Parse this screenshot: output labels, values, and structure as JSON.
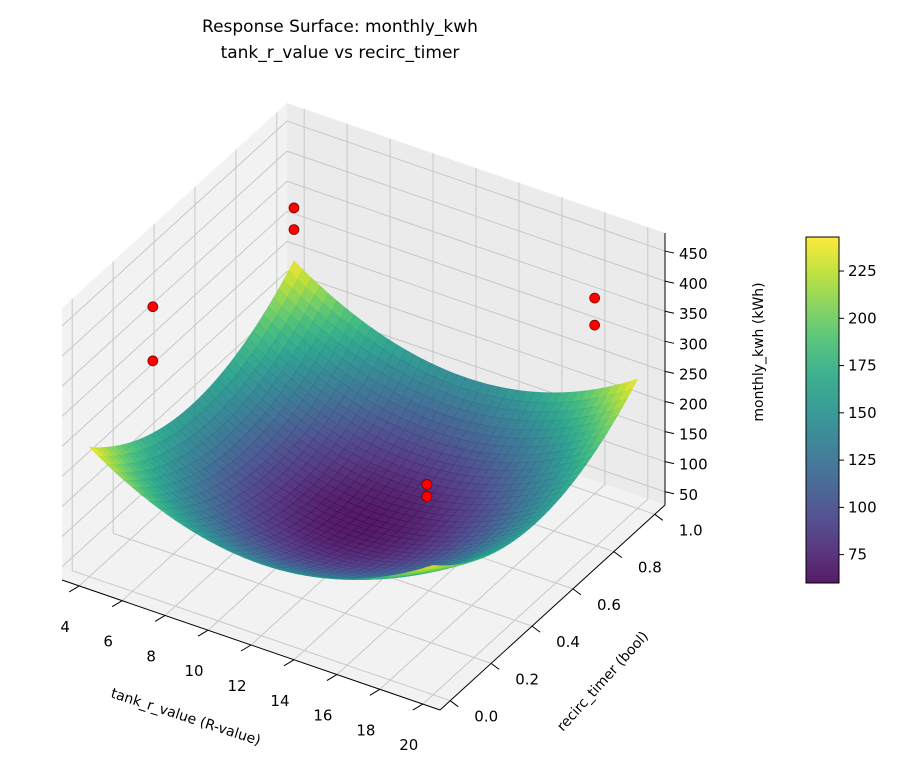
{
  "chart_data": {
    "type": "surface3d",
    "title": "Response Surface: monthly_kwh",
    "subtitle": "tank_r_value vs recirc_timer",
    "xlabel": "tank_r_value (R-value)",
    "ylabel": "recirc_timer (bool)",
    "zlabel": "monthly_kwh (kWh)",
    "xlim": [
      3.2,
      20.8
    ],
    "ylim": [
      -0.05,
      1.05
    ],
    "zlim": [
      28,
      480
    ],
    "xticks": [
      4,
      6,
      8,
      10,
      12,
      14,
      16,
      18,
      20
    ],
    "yticks": [
      "0.0",
      "0.2",
      "0.4",
      "0.6",
      "0.8",
      "1.0"
    ],
    "zticks": [
      50,
      100,
      150,
      200,
      250,
      300,
      350,
      400,
      450
    ],
    "surface": {
      "x_range": [
        4,
        20
      ],
      "y_range": [
        0,
        1
      ],
      "colormap": "viridis",
      "alpha": 0.85,
      "model": {
        "z_min": 62,
        "x_center": 12,
        "y_center": 0.5,
        "x_coef": 1.5,
        "y_coef": 340
      }
    },
    "points": [
      {
        "x": 6,
        "y": 0.1,
        "z": 470
      },
      {
        "x": 6,
        "y": 0.1,
        "z": 380
      },
      {
        "x": 4,
        "y": 1,
        "z": 331
      },
      {
        "x": 4,
        "y": 1,
        "z": 295
      },
      {
        "x": 18,
        "y": 1,
        "z": 353
      },
      {
        "x": 18,
        "y": 1,
        "z": 308
      },
      {
        "x": 14,
        "y": 0.6,
        "z": 118
      },
      {
        "x": 14,
        "y": 0.6,
        "z": 98
      }
    ],
    "point_color": "#ff0000",
    "colorbar": {
      "range": [
        60,
        243
      ],
      "ticks": [
        75,
        100,
        125,
        150,
        175,
        200,
        225
      ]
    },
    "grid": true
  }
}
